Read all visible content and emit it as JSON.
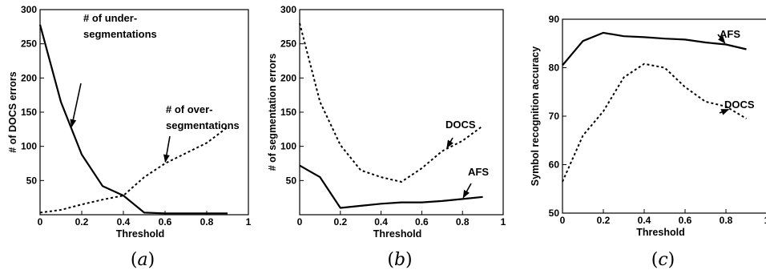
{
  "chart_data": [
    {
      "type": "line",
      "caption": "(a)",
      "xlabel": "Threshold",
      "ylabel": "# of DOCS errors",
      "xlim": [
        0,
        1
      ],
      "ylim": [
        0,
        300
      ],
      "xticks": [
        "0",
        "0.2",
        "0.4",
        "0.6",
        "0.8",
        "1"
      ],
      "yticks": [
        "50",
        "100",
        "150",
        "200",
        "250",
        "300"
      ],
      "series": [
        {
          "style": "solid",
          "x": [
            0,
            0.1,
            0.2,
            0.3,
            0.4,
            0.5,
            0.6,
            0.7,
            0.8,
            0.9
          ],
          "y": [
            278,
            165,
            88,
            42,
            28,
            3,
            2,
            2,
            2,
            2
          ]
        },
        {
          "style": "dotted",
          "x": [
            0,
            0.1,
            0.2,
            0.3,
            0.4,
            0.5,
            0.6,
            0.7,
            0.8,
            0.9
          ],
          "y": [
            3,
            7,
            15,
            22,
            28,
            55,
            75,
            90,
            105,
            128
          ]
        }
      ],
      "annotations": [
        {
          "lines": [
            "# of under-",
            "segmentations"
          ],
          "points_to_x": 0.15
        },
        {
          "lines": [
            "# of over-",
            "segmentations"
          ],
          "points_to_x": 0.6
        }
      ]
    },
    {
      "type": "line",
      "caption": "(b)",
      "xlabel": "Threshold",
      "ylabel": "# of segmentation errors",
      "xlim": [
        0,
        1
      ],
      "ylim": [
        0,
        300
      ],
      "xticks": [
        "0",
        "0.2",
        "0.4",
        "0.6",
        "0.8",
        "1"
      ],
      "yticks": [
        "50",
        "100",
        "150",
        "200",
        "250",
        "300"
      ],
      "series": [
        {
          "name": "AFS",
          "style": "solid",
          "x": [
            0,
            0.1,
            0.2,
            0.3,
            0.4,
            0.5,
            0.6,
            0.7,
            0.8,
            0.9
          ],
          "y": [
            72,
            55,
            10,
            13,
            16,
            18,
            18,
            20,
            23,
            26
          ]
        },
        {
          "name": "DOCS",
          "style": "dotted",
          "x": [
            0,
            0.1,
            0.2,
            0.3,
            0.4,
            0.5,
            0.6,
            0.7,
            0.8,
            0.9
          ],
          "y": [
            280,
            165,
            102,
            65,
            55,
            48,
            68,
            93,
            108,
            130
          ]
        }
      ],
      "annotations": [
        {
          "lines": [
            "DOCS"
          ],
          "points_to_x": 0.72
        },
        {
          "lines": [
            "AFS"
          ],
          "points_to_x": 0.8
        }
      ]
    },
    {
      "type": "line",
      "caption": "(c)",
      "xlabel": "Threshold",
      "ylabel": "Symbol recognition accuracy",
      "xlim": [
        0,
        1
      ],
      "ylim": [
        50,
        90
      ],
      "xticks": [
        "0",
        "0.2",
        "0.4",
        "0.6",
        "0.8",
        "1"
      ],
      "yticks": [
        "50",
        "60",
        "70",
        "80",
        "90"
      ],
      "series": [
        {
          "name": "AFS",
          "style": "solid",
          "x": [
            0,
            0.1,
            0.2,
            0.3,
            0.4,
            0.5,
            0.6,
            0.7,
            0.8,
            0.9
          ],
          "y": [
            80.5,
            85.5,
            87.2,
            86.5,
            86.3,
            86,
            85.8,
            85.2,
            84.8,
            83.8
          ]
        },
        {
          "name": "DOCS",
          "style": "dotted",
          "x": [
            0,
            0.1,
            0.2,
            0.3,
            0.4,
            0.5,
            0.6,
            0.7,
            0.8,
            0.9
          ],
          "y": [
            56.5,
            66,
            71,
            78,
            80.8,
            80,
            76,
            73,
            72,
            69.5
          ]
        }
      ],
      "annotations": [
        {
          "lines": [
            "AFS"
          ],
          "points_to_x": 0.8
        },
        {
          "lines": [
            "DOCS"
          ],
          "points_to_x": 0.82
        }
      ]
    }
  ]
}
